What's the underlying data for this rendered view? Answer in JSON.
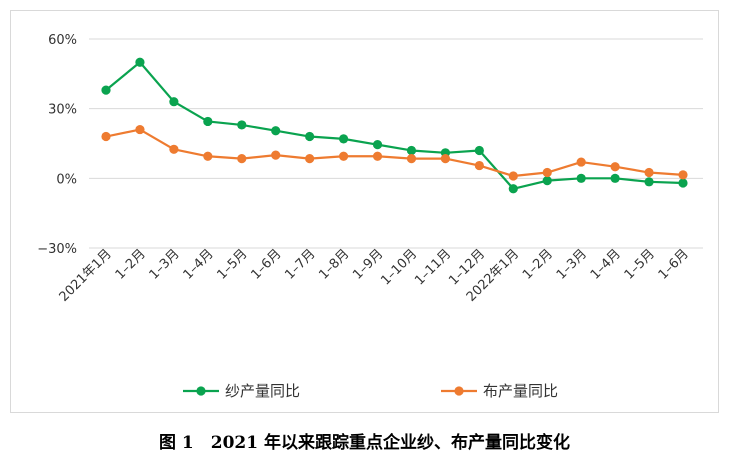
{
  "caption": "图 1　2021 年以来跟踪重点企业纱、布产量同比变化",
  "chart_data": {
    "type": "line",
    "categories": [
      "2021年1月",
      "1–2月",
      "1–3月",
      "1–4月",
      "1–5月",
      "1–6月",
      "1–7月",
      "1–8月",
      "1–9月",
      "1–10月",
      "1–11月",
      "1–12月",
      "2022年1月",
      "1–2月",
      "1–3月",
      "1–4月",
      "1–5月",
      "1–6月"
    ],
    "series": [
      {
        "name": "纱产量同比",
        "color": "#0aa34f",
        "values": [
          38,
          50,
          33,
          24.5,
          23,
          20.5,
          18,
          17,
          14.5,
          12,
          11,
          12,
          -4.5,
          -1,
          0,
          0,
          -1.5,
          -2
        ]
      },
      {
        "name": "布产量同比",
        "color": "#ee7b30",
        "values": [
          18,
          21,
          12.5,
          9.5,
          8.5,
          10,
          8.5,
          9.5,
          9.5,
          8.5,
          8.5,
          5.5,
          1,
          2.5,
          7,
          5,
          2.5,
          1.5
        ]
      }
    ],
    "yticks": [
      -30,
      0,
      30,
      60
    ],
    "ytick_labels": [
      "−30%",
      "0%",
      "30%",
      "60%"
    ],
    "ylim": [
      -30,
      60
    ],
    "grid": true,
    "legend_position": "bottom"
  }
}
